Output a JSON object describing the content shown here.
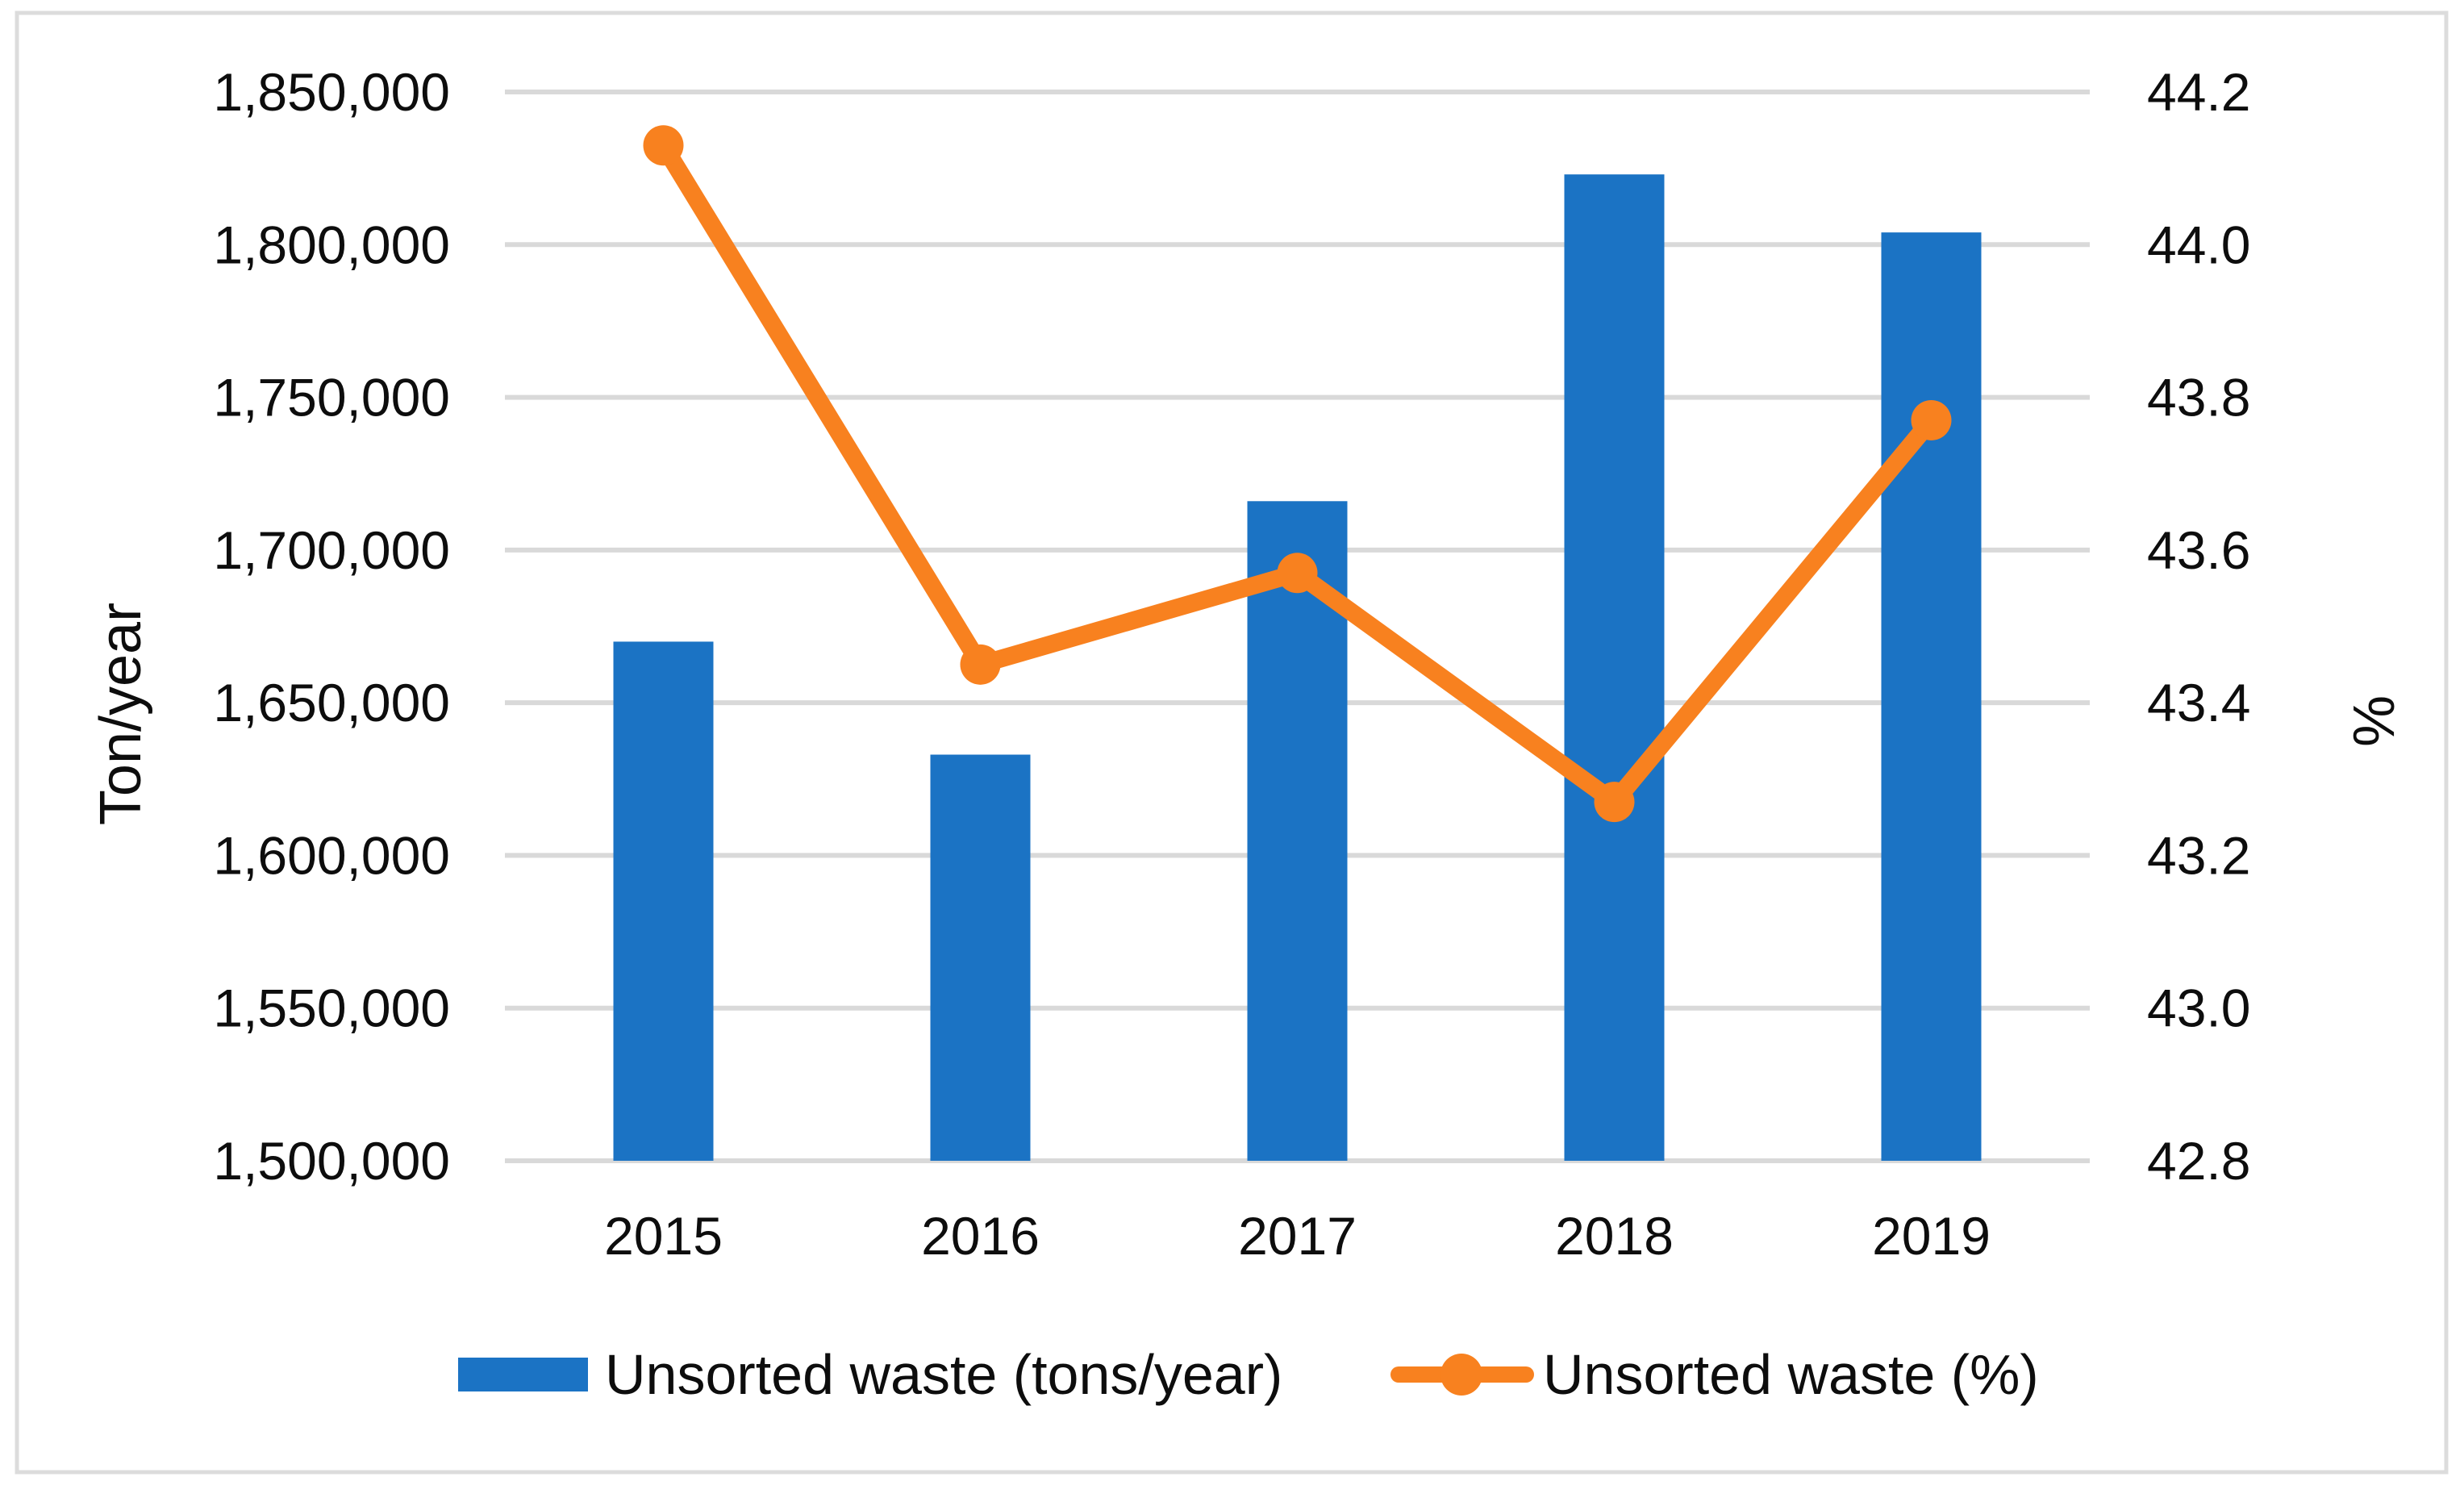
{
  "chart_data": {
    "type": "bar+line combo",
    "categories": [
      "2015",
      "2016",
      "2017",
      "2018",
      "2019"
    ],
    "series": [
      {
        "name": "Unsorted waste (tons/year)",
        "type": "bar",
        "axis": "left",
        "color": "#1b73c4",
        "values": [
          1670000,
          1633000,
          1716000,
          1823000,
          1804000
        ]
      },
      {
        "name": "Unsorted waste (%)",
        "type": "line",
        "axis": "right",
        "color": "#f8811f",
        "values": [
          44.13,
          43.45,
          43.57,
          43.27,
          43.77
        ]
      }
    ],
    "left_axis": {
      "title": "Ton/year",
      "min": 1500000,
      "max": 1850000,
      "step": 50000,
      "tick_labels": [
        "1,850,000",
        "1,800,000",
        "1,750,000",
        "1,700,000",
        "1,650,000",
        "1,600,000",
        "1,550,000",
        "1,500,000"
      ]
    },
    "right_axis": {
      "title": "%",
      "min": 42.8,
      "max": 44.2,
      "step": 0.2,
      "tick_labels": [
        "44.2",
        "44.0",
        "43.8",
        "43.6",
        "43.4",
        "43.2",
        "43.0",
        "42.8"
      ]
    },
    "grid": true,
    "legend_position": "bottom",
    "colors": {
      "grid": "#d9d9d9",
      "border": "#dcdcdc",
      "text": "#0d0d0d",
      "background": "#ffffff"
    }
  }
}
